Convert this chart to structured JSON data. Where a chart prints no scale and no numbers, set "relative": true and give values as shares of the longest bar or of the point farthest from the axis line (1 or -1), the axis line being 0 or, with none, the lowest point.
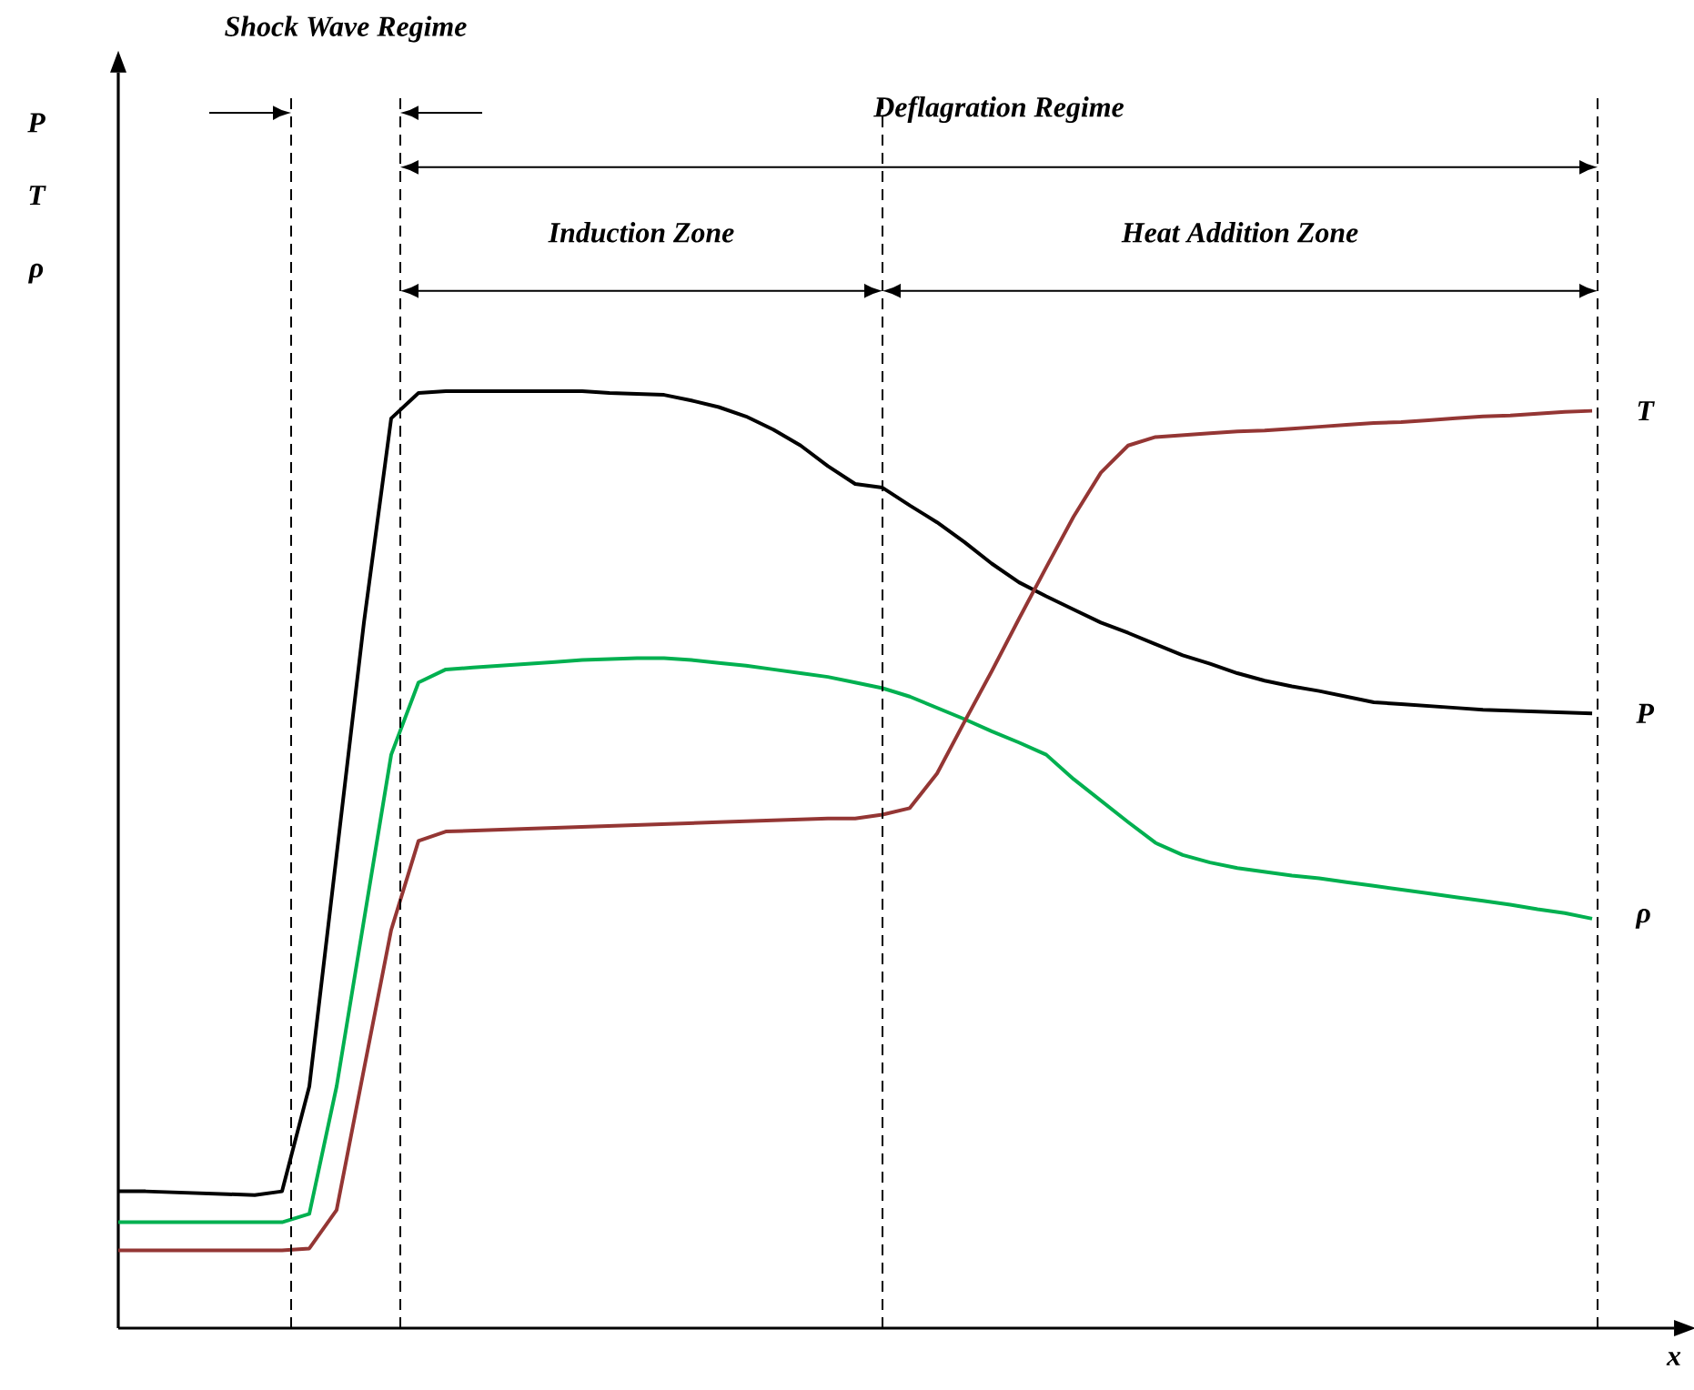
{
  "chart_data": {
    "type": "line",
    "relative": true,
    "xlabel": "x",
    "ylabel": "P T ρ",
    "tick_labels": false,
    "legend": false,
    "categories": [
      null,
      null,
      null,
      null,
      null,
      null,
      null,
      null,
      null,
      null,
      null,
      null,
      null,
      null,
      null,
      null,
      null,
      null,
      null,
      null,
      null,
      null,
      null,
      null,
      null,
      null,
      null,
      null,
      null,
      null,
      null,
      null,
      null,
      null,
      null,
      null,
      null,
      null,
      null,
      null,
      null,
      null,
      null,
      null,
      null,
      null,
      null,
      null,
      null,
      null,
      null,
      null,
      null,
      null,
      null
    ],
    "series": [
      {
        "name": "P",
        "color": "#000000",
        "values": [
          0.146,
          0.146,
          0.145,
          0.144,
          0.143,
          0.142,
          0.146,
          0.258,
          0.505,
          0.753,
          0.971,
          0.998,
          1.0,
          1.0,
          1.0,
          1.0,
          1.0,
          1.0,
          0.998,
          0.997,
          0.996,
          0.99,
          0.983,
          0.973,
          0.959,
          0.942,
          0.92,
          0.901,
          0.897,
          0.878,
          0.86,
          0.839,
          0.816,
          0.796,
          0.781,
          0.767,
          0.753,
          0.742,
          0.73,
          0.718,
          0.709,
          0.699,
          0.691,
          0.685,
          0.68,
          0.674,
          0.668,
          0.666,
          0.664,
          0.662,
          0.66,
          0.659,
          0.658,
          0.657,
          0.656
        ]
      },
      {
        "name": "ρ",
        "color": "#00b050",
        "values": [
          0.113,
          0.113,
          0.113,
          0.113,
          0.113,
          0.113,
          0.113,
          0.122,
          0.258,
          0.435,
          0.612,
          0.689,
          0.703,
          0.705,
          0.707,
          0.709,
          0.711,
          0.713,
          0.714,
          0.715,
          0.715,
          0.713,
          0.71,
          0.707,
          0.703,
          0.699,
          0.695,
          0.689,
          0.683,
          0.674,
          0.662,
          0.65,
          0.637,
          0.625,
          0.612,
          0.586,
          0.563,
          0.54,
          0.518,
          0.505,
          0.497,
          0.491,
          0.487,
          0.483,
          0.48,
          0.476,
          0.472,
          0.468,
          0.464,
          0.46,
          0.456,
          0.452,
          0.447,
          0.443,
          0.437
        ]
      },
      {
        "name": "T",
        "color": "#943634",
        "values": [
          0.083,
          0.083,
          0.083,
          0.083,
          0.083,
          0.083,
          0.083,
          0.085,
          0.126,
          0.276,
          0.425,
          0.52,
          0.53,
          0.531,
          0.532,
          0.533,
          0.534,
          0.535,
          0.536,
          0.537,
          0.538,
          0.539,
          0.54,
          0.541,
          0.542,
          0.543,
          0.544,
          0.544,
          0.548,
          0.555,
          0.592,
          0.647,
          0.701,
          0.757,
          0.812,
          0.866,
          0.913,
          0.942,
          0.951,
          0.953,
          0.955,
          0.957,
          0.958,
          0.96,
          0.962,
          0.964,
          0.966,
          0.967,
          0.969,
          0.971,
          0.973,
          0.974,
          0.976,
          0.978,
          0.979
        ]
      }
    ],
    "annotations": [
      "Shock Wave Regime",
      "Deflagration Regime",
      "Induction Zone",
      "Heat Addition Zone"
    ]
  }
}
